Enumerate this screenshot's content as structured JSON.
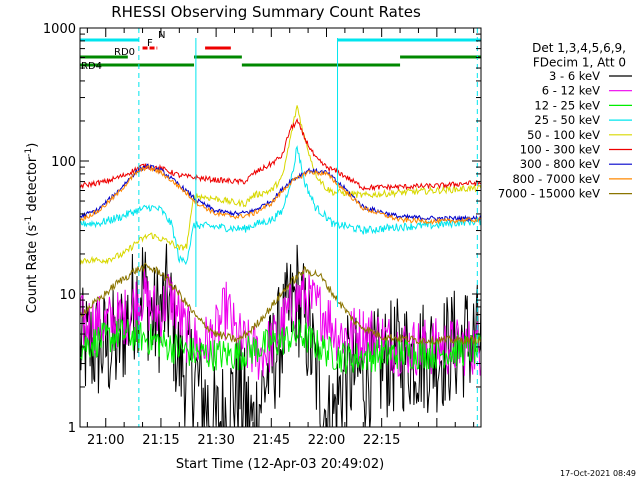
{
  "chart_data": {
    "type": "line",
    "title": "RHESSI Observing Summary Count Rates",
    "xlabel": "Start Time (12-Apr-03 20:49:02)",
    "ylabel": "Count Rate (s⁻¹ detector⁻¹)",
    "yscale": "log",
    "ylim": [
      1,
      1000
    ],
    "xlim_minutes": [
      -7,
      102
    ],
    "x_unit": "minutes after 21:00 UT",
    "y_tick_labels": [
      "1",
      "10",
      "100",
      "1000"
    ],
    "y_tick_values": [
      1,
      10,
      100,
      1000
    ],
    "x_tick_labels": [
      "21:00",
      "21:15",
      "21:30",
      "21:45",
      "22:00",
      "22:15"
    ],
    "x_tick_values": [
      0,
      15,
      30,
      45,
      60,
      75
    ],
    "legend": {
      "placement": "right",
      "header": [
        "Det 1,3,4,5,6,9,",
        "FDecim 1, Att 0"
      ],
      "entries": [
        {
          "label": "3 - 6 keV",
          "color": "#000000"
        },
        {
          "label": "6 - 12 keV",
          "color": "#ee00ee"
        },
        {
          "label": "12 - 25 keV",
          "color": "#00ee00"
        },
        {
          "label": "25 - 50 keV",
          "color": "#00e5ee"
        },
        {
          "label": "50 - 100 keV",
          "color": "#d8d800"
        },
        {
          "label": "100 - 300 keV",
          "color": "#ee0000"
        },
        {
          "label": "300 - 800 keV",
          "color": "#0000cc"
        },
        {
          "label": "800 - 7000 keV",
          "color": "#ff8800"
        },
        {
          "label": "7000 - 15000 keV",
          "color": "#8b7500"
        }
      ]
    },
    "flag_bars": [
      {
        "label": "N",
        "color": "#00e5ee",
        "segments": [
          [
            -7,
            9
          ],
          [
            63,
            102
          ]
        ]
      },
      {
        "label": "F",
        "color": "#ee0000",
        "segments": [
          [
            10,
            14
          ],
          [
            27,
            34
          ]
        ]
      },
      {
        "label": "RD0",
        "color": "#008800",
        "segments": [
          [
            -7,
            6
          ],
          [
            24,
            37
          ],
          [
            80,
            102
          ]
        ]
      },
      {
        "label": "RD4",
        "color": "#008800",
        "segments": [
          [
            -7,
            24
          ],
          [
            37,
            80
          ]
        ]
      }
    ],
    "vertical_markers": [
      9,
      101
    ],
    "series": [
      {
        "name": "3 - 6 keV",
        "color": "#000000",
        "noise": 0.9,
        "points": [
          [
            -7,
            4
          ],
          [
            3,
            4
          ],
          [
            8,
            9
          ],
          [
            10,
            12
          ],
          [
            13,
            6
          ],
          [
            17,
            9
          ],
          [
            20,
            3
          ],
          [
            24,
            2.5
          ],
          [
            30,
            1
          ],
          [
            36,
            2
          ],
          [
            40,
            1
          ],
          [
            44,
            2.5
          ],
          [
            48,
            5
          ],
          [
            52,
            10
          ],
          [
            55,
            5
          ],
          [
            58,
            2
          ],
          [
            61,
            1
          ],
          [
            65,
            2.5
          ],
          [
            70,
            2.5
          ],
          [
            80,
            3.5
          ],
          [
            90,
            3.5
          ],
          [
            98,
            4.5
          ]
        ]
      },
      {
        "name": "6 - 12 keV",
        "color": "#ee00ee",
        "noise": 0.45,
        "points": [
          [
            -7,
            6
          ],
          [
            0,
            6
          ],
          [
            4,
            6.5
          ],
          [
            6,
            7
          ],
          [
            8,
            8.5
          ],
          [
            10,
            10
          ],
          [
            12,
            8
          ],
          [
            15,
            7
          ],
          [
            17,
            10
          ],
          [
            19,
            8
          ],
          [
            22,
            5
          ],
          [
            26,
            4
          ],
          [
            30,
            5
          ],
          [
            33,
            8
          ],
          [
            35,
            5
          ],
          [
            38,
            4
          ],
          [
            42,
            3.5
          ],
          [
            46,
            4.5
          ],
          [
            50,
            7.5
          ],
          [
            53,
            10
          ],
          [
            57,
            8
          ],
          [
            60,
            7
          ],
          [
            63,
            5
          ],
          [
            66,
            5
          ],
          [
            72,
            5
          ],
          [
            80,
            4
          ],
          [
            90,
            4
          ],
          [
            98,
            4
          ]
        ]
      },
      {
        "name": "12 - 25 keV",
        "color": "#00ee00",
        "noise": 0.25,
        "points": [
          [
            -7,
            4
          ],
          [
            -2,
            4.5
          ],
          [
            5,
            5
          ],
          [
            9,
            4.8
          ],
          [
            14,
            4.4
          ],
          [
            18,
            4
          ],
          [
            24,
            3.6
          ],
          [
            30,
            3.5
          ],
          [
            36,
            3.5
          ],
          [
            42,
            4
          ],
          [
            48,
            4.5
          ],
          [
            53,
            5
          ],
          [
            58,
            4
          ],
          [
            62,
            3.5
          ],
          [
            66,
            3.3
          ],
          [
            70,
            3.4
          ],
          [
            80,
            3.6
          ],
          [
            90,
            3.6
          ],
          [
            98,
            3.8
          ]
        ]
      },
      {
        "name": "25 - 50 keV",
        "color": "#00e5ee",
        "noise": 0.06,
        "points": [
          [
            -7,
            34
          ],
          [
            -2,
            34
          ],
          [
            4,
            38
          ],
          [
            8,
            42
          ],
          [
            12,
            45
          ],
          [
            15,
            43
          ],
          [
            18,
            33
          ],
          [
            20,
            18
          ],
          [
            22,
            18
          ],
          [
            24,
            33
          ],
          [
            30,
            32
          ],
          [
            36,
            31
          ],
          [
            38,
            31
          ],
          [
            40,
            33
          ],
          [
            45,
            36
          ],
          [
            48,
            42
          ],
          [
            51,
            85
          ],
          [
            52,
            130
          ],
          [
            54,
            70
          ],
          [
            57,
            45
          ],
          [
            60,
            38
          ],
          [
            62,
            33
          ],
          [
            64,
            33
          ],
          [
            70,
            30
          ],
          [
            80,
            32
          ],
          [
            90,
            33
          ],
          [
            98,
            35
          ]
        ]
      },
      {
        "name": "50 - 100 keV",
        "color": "#d8d800",
        "noise": 0.05,
        "points": [
          [
            -7,
            18
          ],
          [
            0,
            18
          ],
          [
            5,
            20
          ],
          [
            8,
            24
          ],
          [
            12,
            28
          ],
          [
            15,
            26
          ],
          [
            18,
            24
          ],
          [
            20,
            22
          ],
          [
            22,
            23
          ],
          [
            24,
            55
          ],
          [
            30,
            52
          ],
          [
            36,
            48
          ],
          [
            38,
            48
          ],
          [
            40,
            55
          ],
          [
            45,
            60
          ],
          [
            48,
            75
          ],
          [
            50,
            140
          ],
          [
            52,
            260
          ],
          [
            54,
            150
          ],
          [
            57,
            80
          ],
          [
            60,
            62
          ],
          [
            62,
            58
          ],
          [
            64,
            58
          ],
          [
            70,
            55
          ],
          [
            80,
            58
          ],
          [
            90,
            60
          ],
          [
            98,
            62
          ]
        ]
      },
      {
        "name": "100 - 300 keV",
        "color": "#ee0000",
        "noise": 0.04,
        "points": [
          [
            -7,
            65
          ],
          [
            0,
            70
          ],
          [
            5,
            78
          ],
          [
            10,
            92
          ],
          [
            15,
            88
          ],
          [
            20,
            78
          ],
          [
            24,
            75
          ],
          [
            30,
            72
          ],
          [
            36,
            70
          ],
          [
            38,
            70
          ],
          [
            40,
            80
          ],
          [
            45,
            95
          ],
          [
            48,
            110
          ],
          [
            50,
            170
          ],
          [
            52,
            200
          ],
          [
            54,
            150
          ],
          [
            57,
            105
          ],
          [
            60,
            90
          ],
          [
            62,
            85
          ],
          [
            64,
            80
          ],
          [
            70,
            63
          ],
          [
            80,
            64
          ],
          [
            90,
            65
          ],
          [
            98,
            68
          ]
        ]
      },
      {
        "name": "300 - 800 keV",
        "color": "#0000cc",
        "noise": 0.035,
        "points": [
          [
            -7,
            38
          ],
          [
            -2,
            43
          ],
          [
            3,
            58
          ],
          [
            8,
            82
          ],
          [
            11,
            92
          ],
          [
            15,
            85
          ],
          [
            20,
            66
          ],
          [
            25,
            50
          ],
          [
            30,
            42
          ],
          [
            36,
            40
          ],
          [
            40,
            42
          ],
          [
            45,
            50
          ],
          [
            50,
            70
          ],
          [
            55,
            85
          ],
          [
            60,
            82
          ],
          [
            65,
            62
          ],
          [
            70,
            45
          ],
          [
            80,
            38
          ],
          [
            90,
            37
          ],
          [
            98,
            37
          ]
        ]
      },
      {
        "name": "800 - 7000 keV",
        "color": "#ff8800",
        "noise": 0.035,
        "points": [
          [
            -7,
            36
          ],
          [
            -2,
            42
          ],
          [
            3,
            56
          ],
          [
            8,
            80
          ],
          [
            11,
            90
          ],
          [
            15,
            82
          ],
          [
            20,
            64
          ],
          [
            25,
            48
          ],
          [
            30,
            40
          ],
          [
            36,
            38
          ],
          [
            40,
            40
          ],
          [
            45,
            48
          ],
          [
            50,
            68
          ],
          [
            55,
            83
          ],
          [
            60,
            80
          ],
          [
            65,
            60
          ],
          [
            70,
            44
          ],
          [
            80,
            36
          ],
          [
            90,
            35
          ],
          [
            98,
            36
          ]
        ]
      },
      {
        "name": "7000 - 15000 keV",
        "color": "#8b7500",
        "noise": 0.06,
        "points": [
          [
            -7,
            7
          ],
          [
            -2,
            9
          ],
          [
            3,
            12
          ],
          [
            8,
            15
          ],
          [
            11,
            16
          ],
          [
            15,
            14.5
          ],
          [
            20,
            10
          ],
          [
            25,
            6.5
          ],
          [
            30,
            5
          ],
          [
            36,
            4.5
          ],
          [
            40,
            5.5
          ],
          [
            45,
            8
          ],
          [
            50,
            12
          ],
          [
            54,
            15
          ],
          [
            58,
            14
          ],
          [
            63,
            9
          ],
          [
            68,
            6
          ],
          [
            75,
            4.8
          ],
          [
            85,
            4.5
          ],
          [
            98,
            4.5
          ]
        ]
      }
    ],
    "footer_timestamp": "17-Oct-2021 08:49"
  }
}
